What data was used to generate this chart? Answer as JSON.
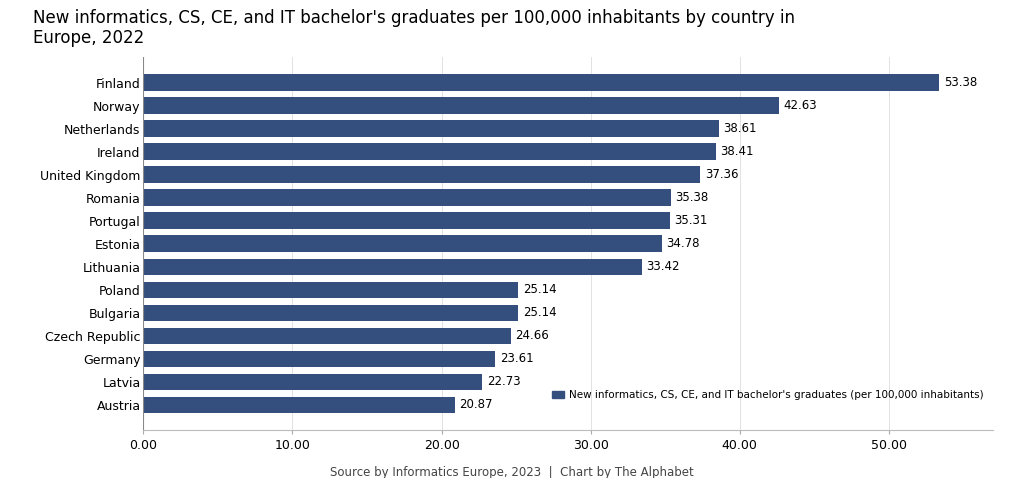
{
  "title": "New informatics, CS, CE, and IT bachelor's graduates per 100,000 inhabitants by country in\nEurope, 2022",
  "countries": [
    "Finland",
    "Norway",
    "Netherlands",
    "Ireland",
    "United Kingdom",
    "Romania",
    "Portugal",
    "Estonia",
    "Lithuania",
    "Poland",
    "Bulgaria",
    "Czech Republic",
    "Germany",
    "Latvia",
    "Austria"
  ],
  "values": [
    53.38,
    42.63,
    38.61,
    38.41,
    37.36,
    35.38,
    35.31,
    34.78,
    33.42,
    25.14,
    25.14,
    24.66,
    23.61,
    22.73,
    20.87
  ],
  "bar_color": "#344f7e",
  "xlim": [
    0,
    57
  ],
  "xticks": [
    0.0,
    10.0,
    20.0,
    30.0,
    40.0,
    50.0
  ],
  "xtick_labels": [
    "0.00",
    "10.00",
    "20.00",
    "30.00",
    "40.00",
    "50.00"
  ],
  "legend_label": "New informatics, CS, CE, and IT bachelor's graduates (per 100,000 inhabitants)",
  "source_text": "Source by Informatics Europe, 2023  |  Chart by The Alphabet",
  "title_fontsize": 12,
  "label_fontsize": 9,
  "tick_fontsize": 9,
  "value_fontsize": 8.5,
  "source_fontsize": 8.5,
  "background_color": "#ffffff"
}
